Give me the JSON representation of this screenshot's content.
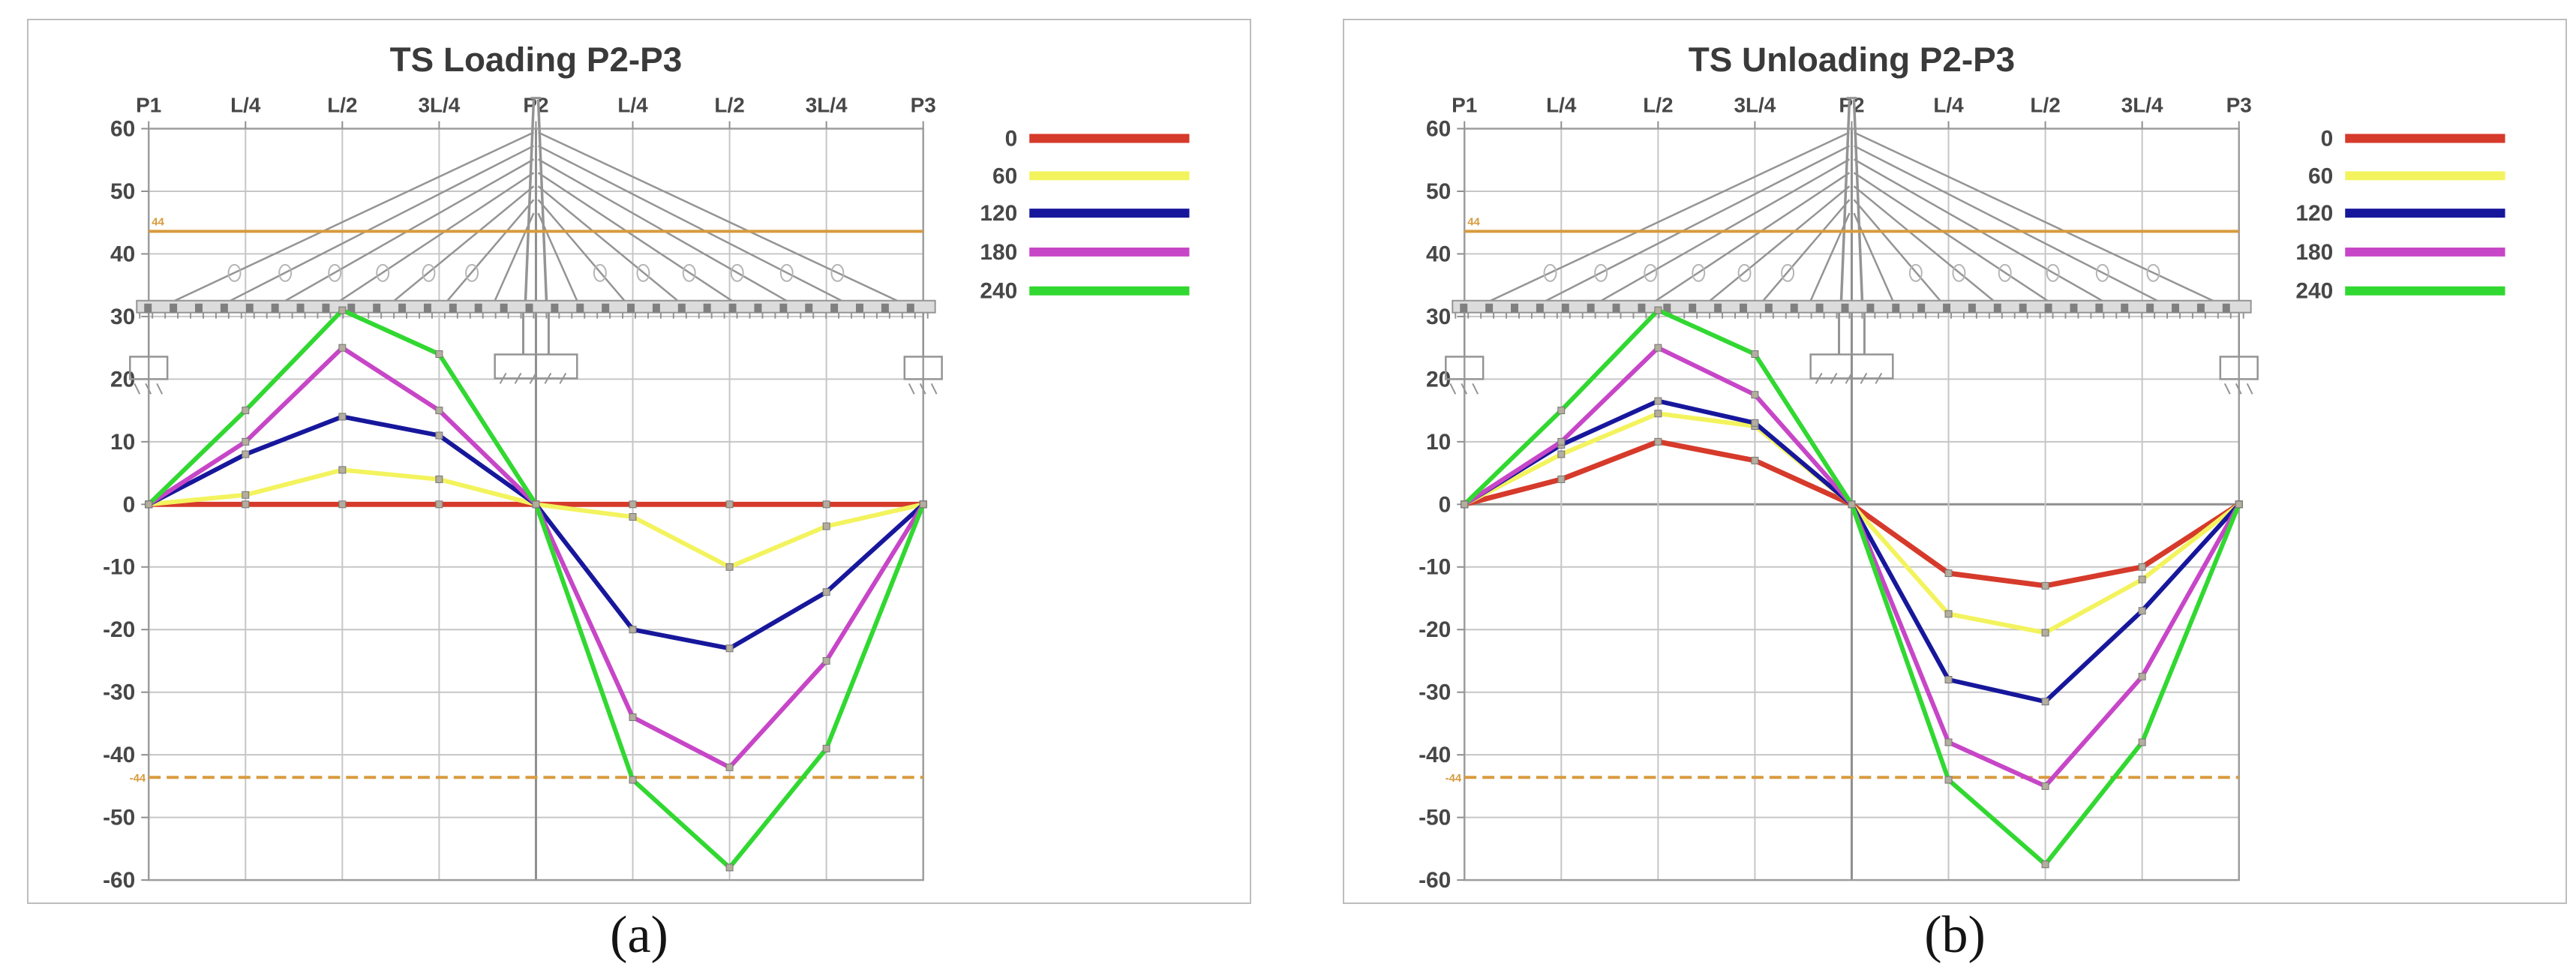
{
  "figure": {
    "captions": [
      "(a)",
      "(b)"
    ]
  },
  "legend": {
    "labels": [
      "0",
      "60",
      "120",
      "180",
      "240"
    ]
  },
  "colors": {
    "red": "#d63a2b",
    "yellow": "#f3f35e",
    "blue": "#17179c",
    "magenta": "#c746c7",
    "green": "#31d831",
    "orange": "#d89b3e",
    "grid": "#c6c6c6",
    "grid_dark": "#8f8f8f",
    "axis": "#9d9d9d",
    "bridge": "#949494",
    "bridge_light": "#b5b5b5",
    "deck_fill": "#dcdcdc",
    "deck_block": "#7f7f7f",
    "marker_fill": "#b3ad9e",
    "marker_stroke": "#757575",
    "title_text": "#3a3a3a",
    "tick_text": "#474747"
  },
  "chart_data": [
    {
      "type": "line",
      "title": "TS Loading P2-P3",
      "categories": [
        "P1",
        "L/4",
        "L/2",
        "3L/4",
        "P2",
        "L/4",
        "L/2",
        "3L/4",
        "P3"
      ],
      "ylim": [
        -60,
        60
      ],
      "yticks": [
        60,
        50,
        40,
        30,
        20,
        10,
        0,
        -10,
        -20,
        -30,
        -40,
        -50,
        -60
      ],
      "grid": true,
      "legend_position": "right",
      "overlay": "cable-stayed bridge schematic",
      "series": [
        {
          "name": "0",
          "color_key": "red",
          "values": [
            0,
            0,
            0,
            0,
            0,
            0,
            0,
            0,
            0
          ]
        },
        {
          "name": "60",
          "color_key": "yellow",
          "values": [
            0,
            1.5,
            5.5,
            4,
            0,
            -2,
            -10,
            -3.5,
            0
          ]
        },
        {
          "name": "120",
          "color_key": "blue",
          "values": [
            0,
            8,
            14,
            11,
            0,
            -20,
            -23,
            -14,
            0
          ]
        },
        {
          "name": "180",
          "color_key": "magenta",
          "values": [
            0,
            10,
            25,
            15,
            0,
            -34,
            -42,
            -25,
            0
          ]
        },
        {
          "name": "240",
          "color_key": "green",
          "values": [
            0,
            15,
            31,
            24,
            0,
            -44,
            -58,
            -39,
            0
          ]
        }
      ],
      "reference_lines": [
        {
          "label": "44",
          "value": 43.6,
          "style": "solid",
          "color_key": "orange"
        },
        {
          "label": "-44",
          "value": -43.6,
          "style": "dashed",
          "color_key": "orange"
        }
      ]
    },
    {
      "type": "line",
      "title": "TS Unloading P2-P3",
      "categories": [
        "P1",
        "L/4",
        "L/2",
        "3L/4",
        "P2",
        "L/4",
        "L/2",
        "3L/4",
        "P3"
      ],
      "ylim": [
        -60,
        60
      ],
      "yticks": [
        60,
        50,
        40,
        30,
        20,
        10,
        0,
        -10,
        -20,
        -30,
        -40,
        -50,
        -60
      ],
      "grid": true,
      "legend_position": "right",
      "overlay": "cable-stayed bridge schematic",
      "series": [
        {
          "name": "0",
          "color_key": "red",
          "values": [
            0,
            4,
            10,
            7,
            0,
            -11,
            -13,
            -10,
            0
          ]
        },
        {
          "name": "60",
          "color_key": "yellow",
          "values": [
            0,
            8,
            14.5,
            12.5,
            0,
            -17.5,
            -20.5,
            -12,
            0
          ]
        },
        {
          "name": "120",
          "color_key": "blue",
          "values": [
            0,
            9.5,
            16.5,
            13,
            0,
            -28,
            -31.5,
            -17,
            0
          ]
        },
        {
          "name": "180",
          "color_key": "magenta",
          "values": [
            0,
            10,
            25,
            17.5,
            0,
            -38,
            -45,
            -27.5,
            0
          ]
        },
        {
          "name": "240",
          "color_key": "green",
          "values": [
            0,
            15,
            31,
            24,
            0,
            -44,
            -57.5,
            -38,
            0
          ]
        }
      ],
      "reference_lines": [
        {
          "label": "44",
          "value": 43.6,
          "style": "solid",
          "color_key": "orange"
        },
        {
          "label": "-44",
          "value": -43.6,
          "style": "dashed",
          "color_key": "orange"
        }
      ]
    }
  ]
}
